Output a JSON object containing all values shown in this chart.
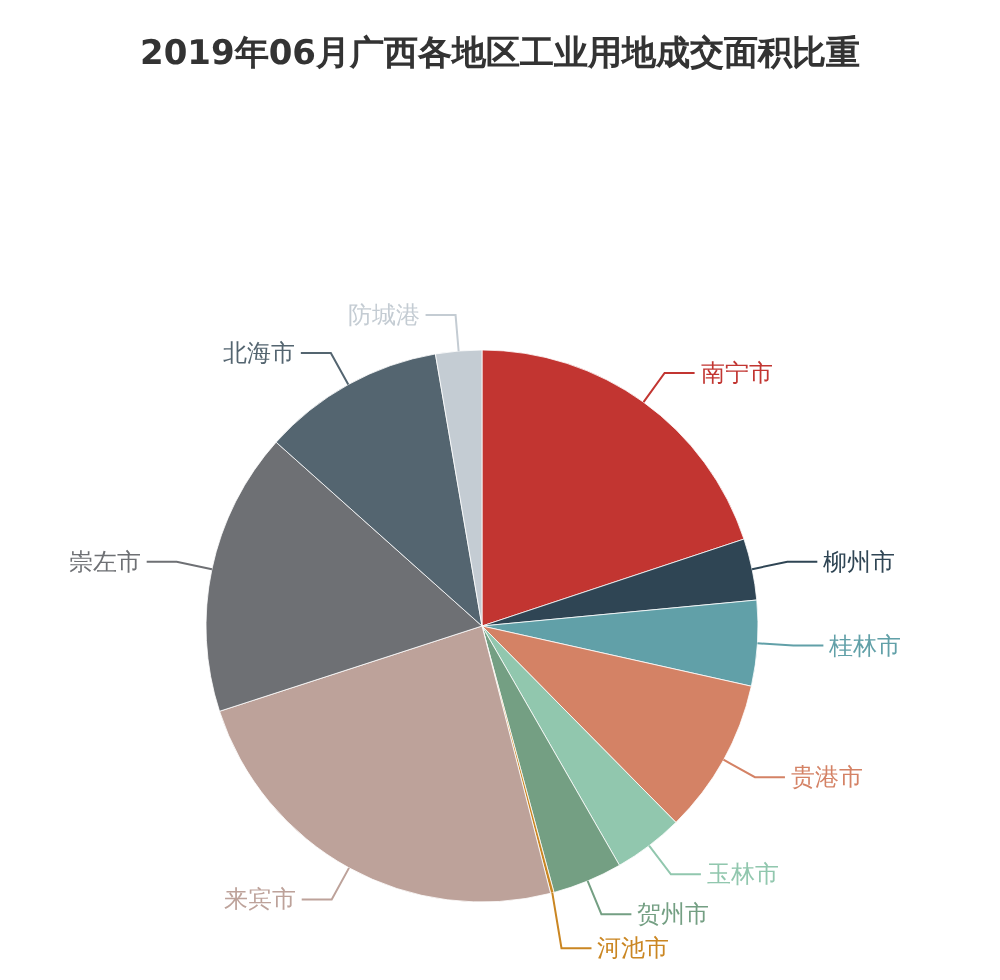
{
  "chart_data": {
    "type": "pie",
    "title": "2019年06月广西各地区工业用地成交面积比重",
    "categories": [
      "南宁市",
      "柳州市",
      "桂林市",
      "贵港市",
      "玉林市",
      "贺州市",
      "河池市",
      "来宾市",
      "崇左市",
      "北海市",
      "防城港"
    ],
    "values": [
      19.9,
      3.6,
      5.0,
      9.1,
      4.1,
      4.1,
      0.2,
      24.0,
      16.6,
      10.7,
      2.7
    ],
    "colors": [
      "#c23531",
      "#2f4554",
      "#61a0a8",
      "#d48265",
      "#91c7ae",
      "#749f83",
      "#ca8622",
      "#bda29a",
      "#6e7074",
      "#546570",
      "#c4ccd3"
    ]
  }
}
